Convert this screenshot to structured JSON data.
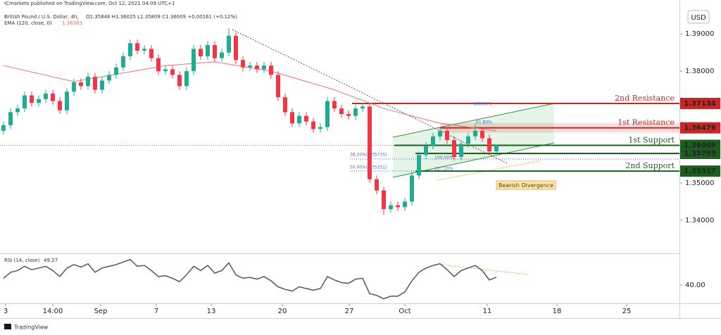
{
  "header": {
    "publisher": "ICmarkets published on TradingView.com, Oct 12, 2021 04:09 UTC+1",
    "symbol": "British Pound / U.S. Dollar, 4h,",
    "ohlc": "O1.35848 H1.36025 L1.35809 C1.36009 +0.00161 (+0.12%)",
    "footer": "TradingView"
  },
  "chart_data": [
    {
      "type": "candlestick",
      "currency": "USD",
      "up_color": "#22ab94",
      "down_color": "#f23645",
      "xlim": [
        -0.5,
        96
      ],
      "xticks": [
        {
          "value": 0.3,
          "label": "3"
        },
        {
          "value": 7,
          "label": "14:00"
        },
        {
          "value": 13.8,
          "label": "Sep"
        },
        {
          "value": 21.7,
          "label": "7"
        },
        {
          "value": 29.5,
          "label": "13"
        },
        {
          "value": 39.6,
          "label": "20"
        },
        {
          "value": 49.1,
          "label": "27"
        },
        {
          "value": 57,
          "label": "Oct"
        },
        {
          "value": 68.7,
          "label": "11"
        },
        {
          "value": 78.6,
          "label": "18"
        },
        {
          "value": 88.5,
          "label": "25"
        }
      ],
      "ylim": [
        1.3311,
        1.3991
      ],
      "yticks": [
        {
          "value": 1.34,
          "label": "1.34000"
        },
        {
          "value": 1.35,
          "label": "1.35000"
        },
        {
          "value": 1.38,
          "label": "1.38000"
        },
        {
          "value": 1.39,
          "label": "1.39000"
        }
      ],
      "open": [
        1.364,
        1.3655,
        1.369,
        1.37,
        1.3735,
        1.3715,
        1.3725,
        1.374,
        1.372,
        1.3695,
        1.3745,
        1.377,
        1.376,
        1.3785,
        1.375,
        1.3775,
        1.379,
        1.381,
        1.384,
        1.3875,
        1.3855,
        1.386,
        1.3835,
        1.38,
        1.3805,
        1.379,
        1.376,
        1.38,
        1.386,
        1.384,
        1.387,
        1.3835,
        1.385,
        1.3895,
        1.383,
        1.381,
        1.3815,
        1.3805,
        1.3815,
        1.379,
        1.373,
        1.369,
        1.366,
        1.368,
        1.3665,
        1.3645,
        1.365,
        1.372,
        1.37,
        1.3685,
        1.368,
        1.37,
        1.3705,
        1.351,
        1.348,
        1.343,
        1.344,
        1.3435,
        1.345,
        1.352,
        1.3575,
        1.36,
        1.3625,
        1.364,
        1.3615,
        1.357,
        1.3605,
        1.3625,
        1.364,
        1.362,
        1.35848
      ],
      "high": [
        1.3665,
        1.37,
        1.371,
        1.3745,
        1.3745,
        1.3735,
        1.375,
        1.375,
        1.373,
        1.3755,
        1.378,
        1.378,
        1.3795,
        1.3795,
        1.3785,
        1.38,
        1.382,
        1.385,
        1.3885,
        1.3885,
        1.387,
        1.387,
        1.3845,
        1.3815,
        1.3815,
        1.38,
        1.381,
        1.387,
        1.387,
        1.388,
        1.388,
        1.386,
        1.3915,
        1.3905,
        1.384,
        1.3825,
        1.3825,
        1.3825,
        1.3825,
        1.38,
        1.374,
        1.37,
        1.369,
        1.369,
        1.3675,
        1.366,
        1.373,
        1.373,
        1.371,
        1.3695,
        1.371,
        1.3715,
        1.3715,
        1.352,
        1.349,
        1.345,
        1.345,
        1.346,
        1.353,
        1.3585,
        1.361,
        1.3635,
        1.365,
        1.365,
        1.3625,
        1.3615,
        1.3635,
        1.366,
        1.365,
        1.363,
        1.36025
      ],
      "low": [
        1.363,
        1.3645,
        1.368,
        1.369,
        1.3705,
        1.3705,
        1.3715,
        1.371,
        1.3685,
        1.3685,
        1.3735,
        1.375,
        1.375,
        1.374,
        1.374,
        1.3765,
        1.378,
        1.38,
        1.383,
        1.3845,
        1.3845,
        1.3825,
        1.379,
        1.379,
        1.378,
        1.375,
        1.375,
        1.379,
        1.383,
        1.383,
        1.3825,
        1.3825,
        1.384,
        1.382,
        1.38,
        1.38,
        1.3795,
        1.3795,
        1.378,
        1.372,
        1.368,
        1.365,
        1.365,
        1.3655,
        1.3635,
        1.3635,
        1.364,
        1.369,
        1.3675,
        1.367,
        1.367,
        1.369,
        1.35,
        1.347,
        1.3415,
        1.342,
        1.3425,
        1.3425,
        1.344,
        1.351,
        1.3565,
        1.359,
        1.3615,
        1.3605,
        1.356,
        1.356,
        1.3595,
        1.3615,
        1.361,
        1.3575,
        1.35809
      ],
      "close": [
        1.3655,
        1.369,
        1.37,
        1.3735,
        1.3715,
        1.3725,
        1.374,
        1.372,
        1.3695,
        1.3745,
        1.377,
        1.376,
        1.3785,
        1.375,
        1.3775,
        1.379,
        1.381,
        1.384,
        1.3875,
        1.3855,
        1.386,
        1.3835,
        1.38,
        1.3805,
        1.379,
        1.376,
        1.38,
        1.386,
        1.384,
        1.387,
        1.3835,
        1.385,
        1.3895,
        1.383,
        1.381,
        1.3815,
        1.3805,
        1.3815,
        1.379,
        1.373,
        1.369,
        1.366,
        1.368,
        1.3665,
        1.3645,
        1.365,
        1.372,
        1.37,
        1.3685,
        1.368,
        1.37,
        1.3705,
        1.351,
        1.348,
        1.343,
        1.344,
        1.3435,
        1.345,
        1.352,
        1.3575,
        1.36,
        1.3625,
        1.364,
        1.3615,
        1.357,
        1.3605,
        1.3625,
        1.364,
        1.362,
        1.3585,
        1.36009
      ],
      "ema": {
        "name": "EMA (120, close, 0)",
        "last_value": 1.36383,
        "color": "#e57373",
        "x": [
          0,
          10,
          23,
          30,
          38,
          47,
          54,
          62,
          70
        ],
        "values": [
          1.3815,
          1.3772,
          1.3815,
          1.3825,
          1.38,
          1.375,
          1.37,
          1.366,
          1.364
        ]
      },
      "levels": [
        {
          "name": "2nd Resistance",
          "value": 1.37134,
          "color": "#c62828"
        },
        {
          "name": "1st Resistance",
          "value": 1.36479,
          "color": "#c62828"
        },
        {
          "name": "1st Support",
          "value": 1.36009,
          "color": "#1b5e20"
        },
        {
          "value": 1.35793,
          "color": "#1b5e20"
        },
        {
          "name": "2nd Support",
          "value": 1.35317,
          "color": "#1b5e20"
        }
      ],
      "annotations": [
        "38.20%(1.35735)",
        "50.00%(1.35331)",
        "100.00%",
        "61.80%",
        "100.00%",
        "127.20%",
        "Bearish Divergence"
      ]
    },
    {
      "type": "line",
      "name": "RSI (14, close)",
      "color": "#555555",
      "ylim": [
        19.5,
        75.5
      ],
      "yticks": [
        {
          "value": 40,
          "label": "40.00"
        }
      ],
      "values": [
        48,
        55,
        57,
        62,
        58,
        60,
        62,
        57,
        50,
        60,
        64,
        61,
        65,
        55,
        60,
        62,
        64,
        67,
        70,
        62,
        63,
        57,
        50,
        51,
        48,
        44,
        52,
        62,
        57,
        63,
        54,
        57,
        66,
        52,
        48,
        49,
        47,
        50,
        45,
        38,
        35,
        33,
        38,
        36,
        34,
        36,
        50,
        46,
        43,
        42,
        47,
        48,
        30,
        28,
        24,
        27,
        27,
        32,
        45,
        55,
        60,
        63,
        65,
        58,
        50,
        57,
        60,
        63,
        57,
        46,
        49.27
      ]
    }
  ]
}
